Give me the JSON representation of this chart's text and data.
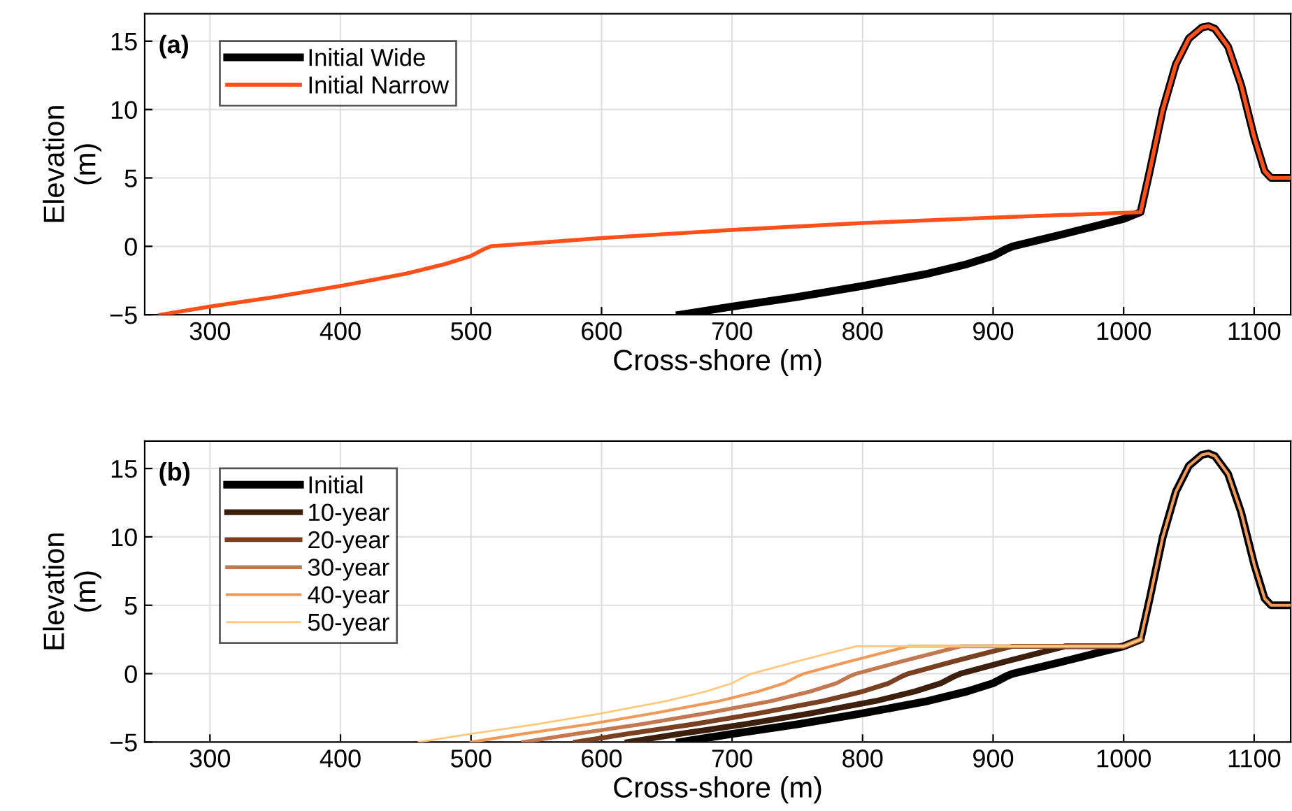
{
  "chart_data": [
    {
      "type": "line",
      "xlabel": "Cross-shore (m)",
      "ylabel": "Elevation\n(m)",
      "annotations": [
        "(a)"
      ],
      "xlim": [
        250,
        1128
      ],
      "ylim": [
        -5,
        17
      ],
      "xticks": [
        300,
        400,
        500,
        600,
        700,
        800,
        900,
        1000,
        1100
      ],
      "yticks": [
        -5,
        0,
        5,
        10,
        15
      ],
      "grid": true,
      "legend": "top left",
      "series": [
        {
          "name": "Initial Wide",
          "color": "#000000",
          "x": [
            660,
            700,
            750,
            800,
            850,
            880,
            900,
            910,
            915,
            950,
            1000,
            1013,
            1020,
            1030,
            1040,
            1050,
            1060,
            1065,
            1070,
            1080,
            1090,
            1100,
            1108,
            1113,
            1128
          ],
          "values": [
            -5,
            -4.4,
            -3.7,
            -2.9,
            -2.0,
            -1.3,
            -0.7,
            -0.2,
            0,
            0.8,
            2.0,
            2.5,
            5.5,
            10,
            13.3,
            15.2,
            16,
            16.1,
            15.9,
            14.6,
            11.8,
            8,
            5.5,
            5,
            5
          ]
        },
        {
          "name": "Initial Narrow",
          "color": "#ff4f1a",
          "x": [
            262,
            300,
            350,
            400,
            450,
            480,
            500,
            510,
            515,
            600,
            700,
            800,
            900,
            1013,
            1020,
            1030,
            1040,
            1050,
            1060,
            1065,
            1070,
            1080,
            1090,
            1100,
            1108,
            1113,
            1128
          ],
          "values": [
            -5,
            -4.4,
            -3.7,
            -2.9,
            -2.0,
            -1.3,
            -0.7,
            -0.2,
            0,
            0.6,
            1.2,
            1.7,
            2.1,
            2.5,
            5.5,
            10,
            13.3,
            15.2,
            16,
            16.1,
            15.9,
            14.6,
            11.8,
            8,
            5.5,
            5,
            5
          ]
        }
      ]
    },
    {
      "type": "line",
      "xlabel": "Cross-shore (m)",
      "ylabel": "Elevation\n(m)",
      "annotations": [
        "(b)"
      ],
      "xlim": [
        250,
        1128
      ],
      "ylim": [
        -5,
        17
      ],
      "xticks": [
        300,
        400,
        500,
        600,
        700,
        800,
        900,
        1000,
        1100
      ],
      "yticks": [
        -5,
        0,
        5,
        10,
        15
      ],
      "grid": true,
      "legend": "top left",
      "series": [
        {
          "name": "Initial",
          "color": "#000000",
          "x": [
            660,
            700,
            750,
            800,
            850,
            880,
            900,
            910,
            915,
            950,
            1000,
            1013,
            1020,
            1030,
            1040,
            1050,
            1060,
            1065,
            1070,
            1080,
            1090,
            1100,
            1108,
            1113,
            1128
          ],
          "values": [
            -5,
            -4.4,
            -3.7,
            -2.9,
            -2.0,
            -1.3,
            -0.7,
            -0.2,
            0,
            0.8,
            2.0,
            2.5,
            5.5,
            10,
            13.3,
            15.2,
            16,
            16.1,
            15.9,
            14.6,
            11.8,
            8,
            5.5,
            5,
            5
          ]
        },
        {
          "name": "10-year",
          "color": "#3d1f0e",
          "x": [
            620,
            660,
            710,
            760,
            810,
            840,
            860,
            870,
            875,
            910,
            955,
            1000,
            1013
          ],
          "values": [
            -5,
            -4.4,
            -3.7,
            -2.9,
            -2.0,
            -1.3,
            -0.7,
            -0.2,
            0,
            0.9,
            2,
            2,
            2.5
          ]
        },
        {
          "name": "20-year",
          "color": "#7a4022",
          "x": [
            580,
            620,
            670,
            720,
            770,
            800,
            820,
            830,
            835,
            870,
            915,
            1000,
            1013
          ],
          "values": [
            -5,
            -4.4,
            -3.7,
            -2.9,
            -2.0,
            -1.3,
            -0.7,
            -0.2,
            0,
            0.9,
            2,
            2,
            2.5
          ]
        },
        {
          "name": "30-year",
          "color": "#c27850",
          "x": [
            540,
            580,
            630,
            680,
            730,
            760,
            780,
            790,
            795,
            830,
            875,
            1000,
            1013
          ],
          "values": [
            -5,
            -4.4,
            -3.7,
            -2.9,
            -2.0,
            -1.3,
            -0.7,
            -0.2,
            0,
            0.9,
            2,
            2,
            2.5
          ]
        },
        {
          "name": "40-year",
          "color": "#f09a5a",
          "x": [
            500,
            540,
            590,
            640,
            690,
            720,
            740,
            750,
            755,
            790,
            835,
            1000,
            1013,
            1020,
            1030,
            1040,
            1050,
            1060,
            1065,
            1070,
            1080,
            1090,
            1100,
            1108,
            1113,
            1128
          ],
          "values": [
            -5,
            -4.4,
            -3.7,
            -2.9,
            -2.0,
            -1.3,
            -0.7,
            -0.2,
            0,
            0.9,
            2,
            2,
            2.5,
            5.5,
            10,
            13.3,
            15.2,
            16,
            16.1,
            15.9,
            14.6,
            11.8,
            8,
            5.5,
            5,
            5
          ]
        },
        {
          "name": "50-year",
          "color": "#ffc87a",
          "x": [
            460,
            500,
            550,
            600,
            650,
            680,
            700,
            710,
            715,
            750,
            795,
            1000,
            1013
          ],
          "values": [
            -5,
            -4.4,
            -3.7,
            -2.9,
            -2.0,
            -1.3,
            -0.7,
            -0.2,
            0,
            0.9,
            2,
            2,
            2.5
          ]
        }
      ]
    }
  ]
}
